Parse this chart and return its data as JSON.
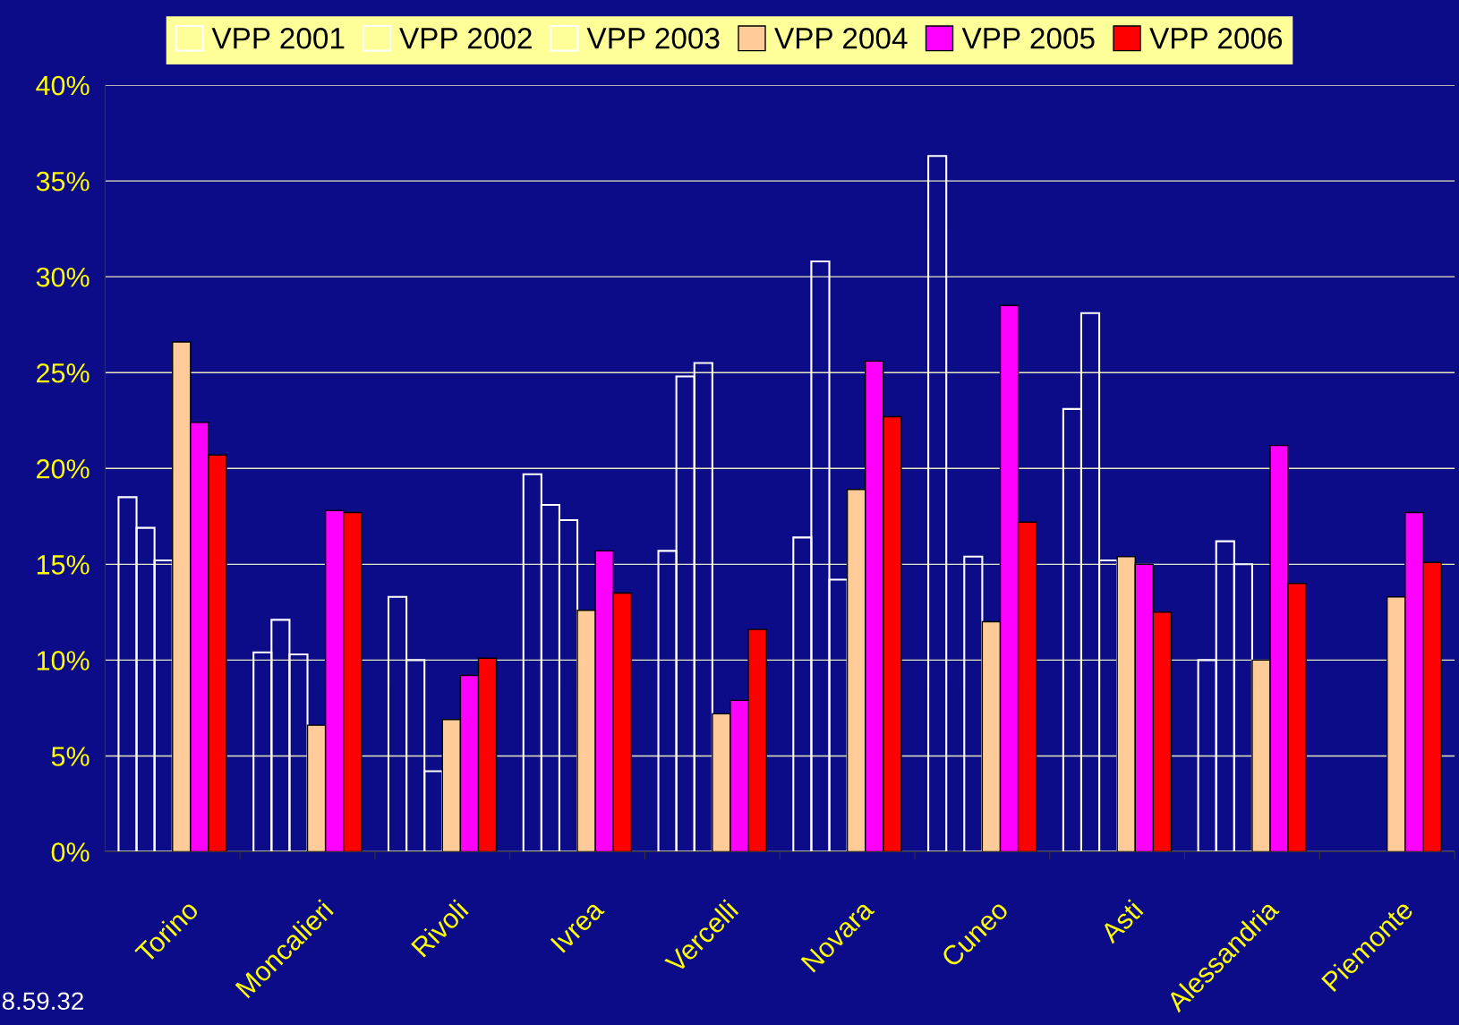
{
  "chart_data": {
    "type": "bar",
    "categories": [
      "Torino",
      "Moncalieri",
      "Rivoli",
      "Ivrea",
      "Vercelli",
      "Novara",
      "Cuneo",
      "Asti",
      "Alessandria",
      "Piemonte"
    ],
    "series": [
      {
        "name": "VPP 2001",
        "color": "#ffffff",
        "values": [
          18.5,
          10.4,
          13.3,
          19.7,
          15.7,
          16.4,
          36.3,
          23.1,
          10.0,
          null
        ]
      },
      {
        "name": "VPP 2002",
        "color": "#ffffff",
        "values": [
          16.9,
          12.1,
          10.0,
          18.1,
          24.8,
          30.8,
          null,
          28.1,
          16.2,
          null
        ]
      },
      {
        "name": "VPP 2003",
        "color": "#ffffff",
        "values": [
          15.2,
          10.3,
          4.2,
          17.3,
          25.5,
          14.2,
          15.4,
          15.2,
          15.0,
          null
        ]
      },
      {
        "name": "VPP 2004",
        "color": "#ffcc99",
        "values": [
          26.6,
          6.6,
          6.9,
          12.6,
          7.2,
          18.9,
          12.0,
          15.4,
          10.0,
          13.3
        ]
      },
      {
        "name": "VPP 2005",
        "color": "#ff00ff",
        "values": [
          22.4,
          17.8,
          9.2,
          15.7,
          7.9,
          25.6,
          28.5,
          15.0,
          21.2,
          17.7
        ]
      },
      {
        "name": "VPP 2006",
        "color": "#ff0000",
        "values": [
          20.7,
          17.7,
          10.1,
          13.5,
          11.6,
          22.7,
          17.2,
          12.5,
          14.0,
          15.1
        ]
      }
    ],
    "ylim": [
      0,
      40
    ],
    "yticks": [
      {
        "value": 0,
        "label": "0%"
      },
      {
        "value": 5,
        "label": "5%"
      },
      {
        "value": 10,
        "label": "10%"
      },
      {
        "value": 15,
        "label": "15%"
      },
      {
        "value": 20,
        "label": "20%"
      },
      {
        "value": 25,
        "label": "25%"
      },
      {
        "value": 30,
        "label": "30%"
      },
      {
        "value": 35,
        "label": "35%"
      },
      {
        "value": 40,
        "label": "40%"
      }
    ],
    "grid": "y",
    "legend": "top",
    "annotations": [
      "8.59.32"
    ]
  }
}
